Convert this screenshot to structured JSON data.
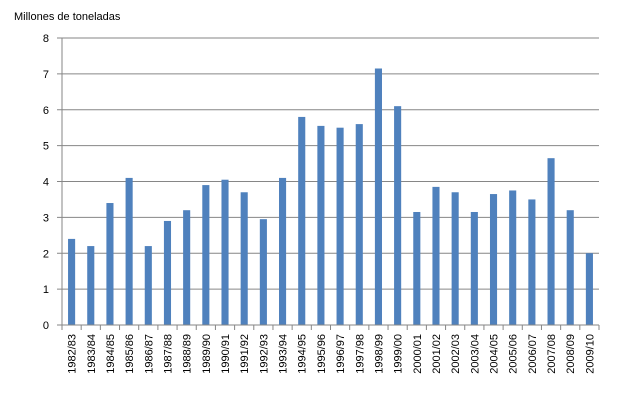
{
  "chart_data": {
    "type": "bar",
    "title": "",
    "xlabel": "",
    "ylabel": "Millones de toneladas",
    "ylim": [
      0,
      8
    ],
    "yticks": [
      0,
      1,
      2,
      3,
      4,
      5,
      6,
      7,
      8
    ],
    "grid": true,
    "legend": "none",
    "bar_color": "#4F81BD",
    "categories": [
      "1982/83",
      "1983/84",
      "1984/85",
      "1985/86",
      "1986/87",
      "1987/88",
      "1988/89",
      "1989/90",
      "1990/91",
      "1991/92",
      "1992/93",
      "1993/94",
      "1994/95",
      "1995/96",
      "1996/97",
      "1997/98",
      "1998/99",
      "1999/00",
      "2000/01",
      "2001/02",
      "2002/03",
      "2003/04",
      "2004/05",
      "2005/06",
      "2006/07",
      "2007/08",
      "2008/09",
      "2009/10"
    ],
    "values": [
      2.4,
      2.2,
      3.4,
      4.1,
      2.2,
      2.9,
      3.2,
      3.9,
      4.05,
      3.7,
      2.95,
      4.1,
      5.8,
      5.55,
      5.5,
      5.6,
      7.15,
      6.1,
      3.15,
      3.85,
      3.7,
      3.15,
      3.65,
      3.75,
      3.5,
      4.65,
      3.2,
      2.0
    ]
  }
}
